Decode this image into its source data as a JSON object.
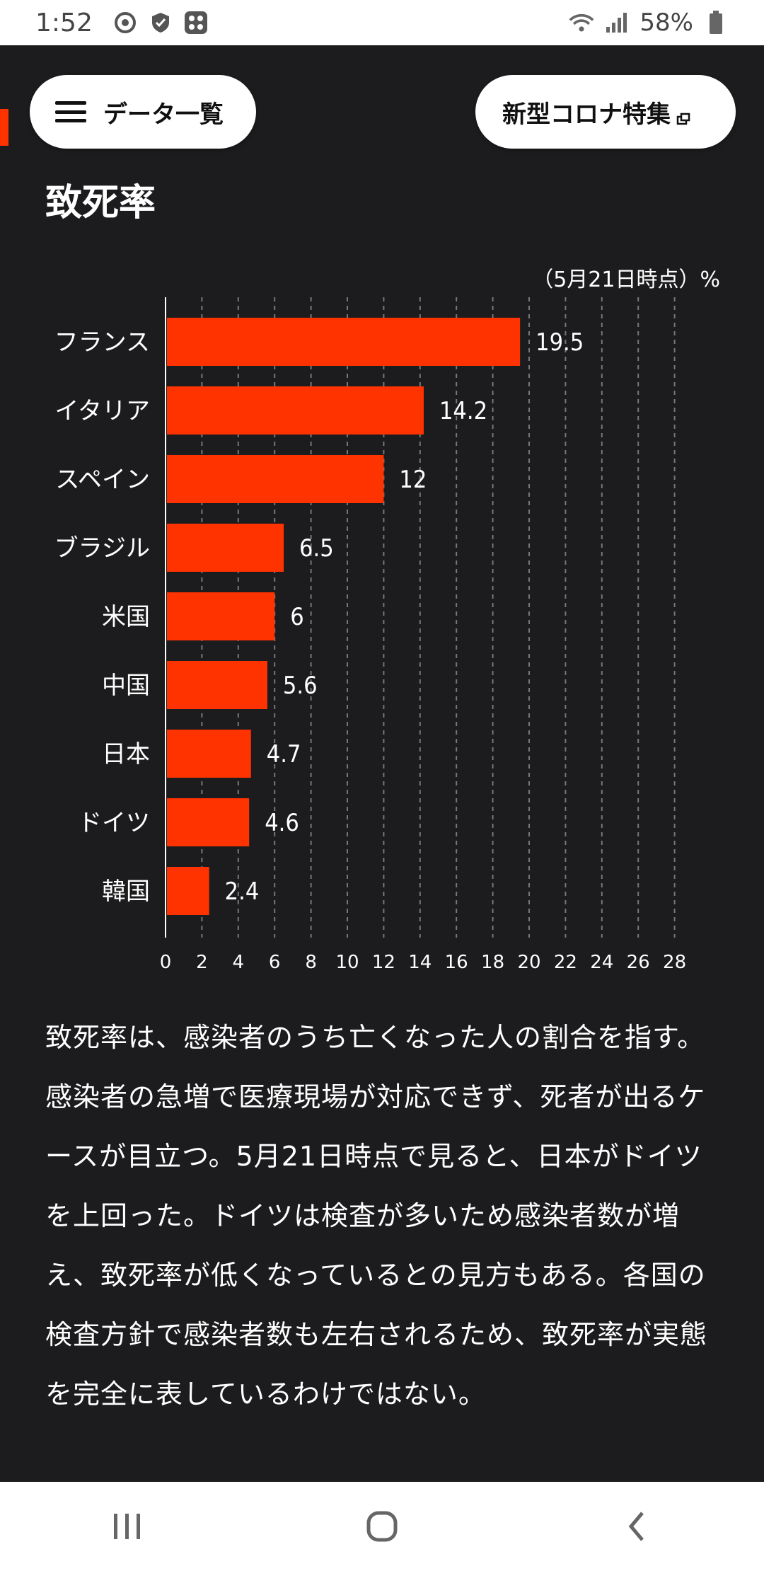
{
  "status_bar": {
    "time": "1:52",
    "battery": "58%"
  },
  "header": {
    "menu_label": "データ一覧",
    "feature_label": "新型コロナ特集"
  },
  "title": "致死率",
  "chart_data": {
    "type": "bar",
    "orientation": "horizontal",
    "annotation": "（5月21日時点）%",
    "categories": [
      "フランス",
      "イタリア",
      "スペイン",
      "ブラジル",
      "米国",
      "中国",
      "日本",
      "ドイツ",
      "韓国"
    ],
    "values": [
      19.5,
      14.2,
      12,
      6.5,
      6,
      5.6,
      4.7,
      4.6,
      2.4
    ],
    "value_labels": [
      "19.5",
      "14.2",
      "12",
      "6.5",
      "6",
      "5.6",
      "4.7",
      "4.6",
      "2.4"
    ],
    "xlim": [
      0,
      28
    ],
    "x_ticks": [
      0,
      2,
      4,
      6,
      8,
      10,
      12,
      14,
      16,
      18,
      20,
      22,
      24,
      26,
      28
    ],
    "grid": true,
    "colors": {
      "bar": "#ff3300",
      "grid": "#777777",
      "text": "#ffffff"
    }
  },
  "description": "致死率は、感染者のうち亡くなった人の割合を指す。感染者の急増で医療現場が対応できず、死者が出るケースが目立つ。5月21日時点で見ると、日本がドイツを上回った。ドイツは検査が多いため感染者数が増え、致死率が低くなっているとの見方もある。各国の検査方針で感染者数も左右されるため、致死率が実態を完全に表しているわけではない。"
}
